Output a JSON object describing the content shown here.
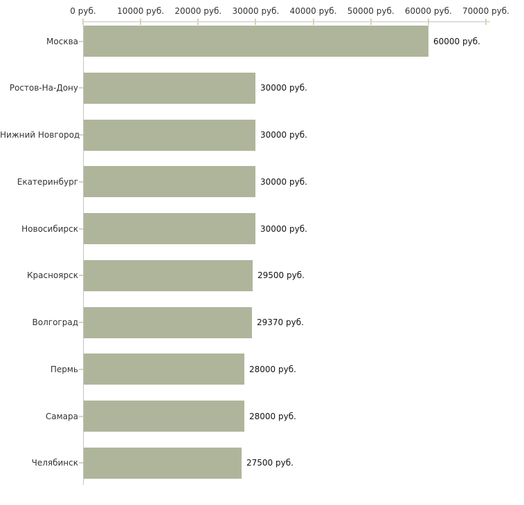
{
  "chart_data": {
    "type": "bar",
    "orientation": "horizontal",
    "title": "",
    "xlabel": "",
    "ylabel": "",
    "xlim": [
      0,
      70000
    ],
    "grid": false,
    "legend": false,
    "axis_position": "top",
    "bar_color": "#afb59b",
    "axis_line_color": "#c3c3c3",
    "tick_mark_color": "#d8d4b0",
    "label_color": "#333333",
    "value_label_color": "#111111",
    "x_ticks": [
      {
        "value": 0,
        "label": "0 руб."
      },
      {
        "value": 10000,
        "label": "10000 руб."
      },
      {
        "value": 20000,
        "label": "20000 руб."
      },
      {
        "value": 30000,
        "label": "30000 руб."
      },
      {
        "value": 40000,
        "label": "40000 руб."
      },
      {
        "value": 50000,
        "label": "50000 руб."
      },
      {
        "value": 60000,
        "label": "60000 руб."
      },
      {
        "value": 70000,
        "label": "70000 руб."
      }
    ],
    "categories": [
      "Москва",
      "Ростов-На-Дону",
      "Нижний Новгород",
      "Екатеринбург",
      "Новосибирск",
      "Красноярск",
      "Волгоград",
      "Пермь",
      "Самара",
      "Челябинск"
    ],
    "values": [
      60000,
      30000,
      30000,
      30000,
      30000,
      29500,
      29370,
      28000,
      28000,
      27500
    ],
    "value_labels": [
      "60000 руб.",
      "30000 руб.",
      "30000 руб.",
      "30000 руб.",
      "30000 руб.",
      "29500 руб.",
      "29370 руб.",
      "28000 руб.",
      "28000 руб.",
      "27500 руб."
    ]
  }
}
